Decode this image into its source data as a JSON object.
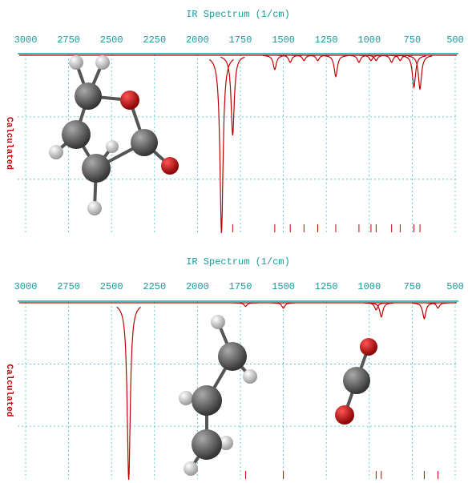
{
  "chart_data": [
    {
      "type": "spectrum",
      "title": "IR Spectrum (1/cm)",
      "y_label": "Calculated",
      "color": "#c00000",
      "x": [
        1860,
        1795,
        1550,
        1460,
        1380,
        1300,
        1195,
        1060,
        990,
        960,
        870,
        820,
        740,
        705
      ],
      "values": [
        100,
        45,
        8,
        4,
        3,
        3,
        12,
        4,
        3,
        3,
        4,
        3,
        18,
        19
      ],
      "xlim": [
        3000,
        500
      ],
      "xticks": [
        3000,
        2750,
        2500,
        2250,
        2000,
        1750,
        1500,
        1250,
        1000,
        750,
        500
      ],
      "ylim": [
        0,
        100
      ],
      "grid": true
    },
    {
      "type": "spectrum",
      "title": "IR Spectrum (1/cm)",
      "y_label": "Calculated",
      "color": "#c00000",
      "x": [
        2400,
        1720,
        1500,
        960,
        930,
        680,
        600
      ],
      "values": [
        100,
        2,
        3,
        4,
        8,
        9,
        3
      ],
      "xlim": [
        3000,
        500
      ],
      "xticks": [
        3000,
        2750,
        2500,
        2250,
        2000,
        1750,
        1500,
        1250,
        1000,
        750,
        500
      ],
      "ylim": [
        0,
        100
      ],
      "grid": true
    }
  ]
}
